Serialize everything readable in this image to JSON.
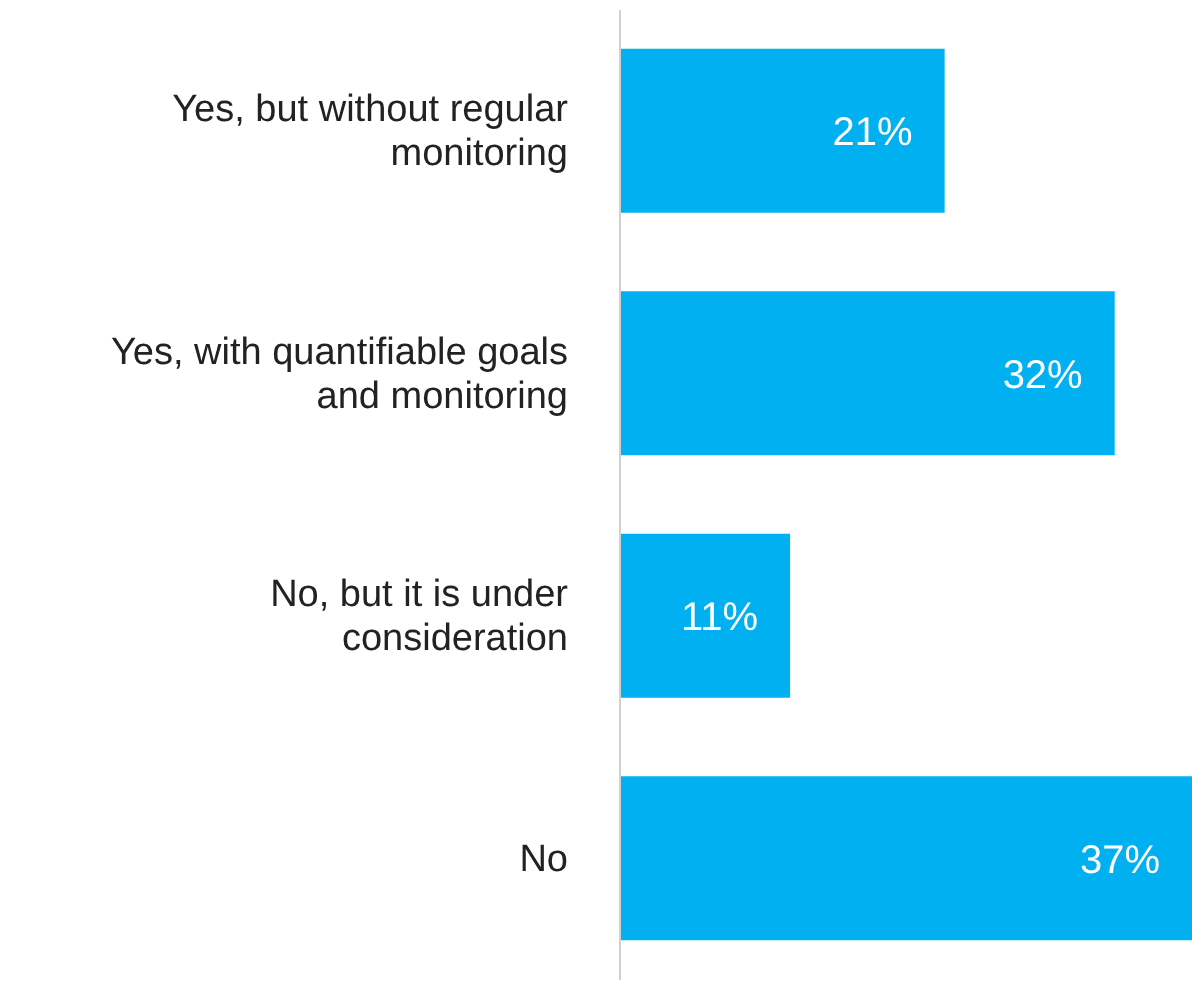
{
  "chart_data": {
    "type": "bar",
    "orientation": "horizontal",
    "categories": [
      "Yes, but without regular monitoring",
      "Yes, with quantifiable goals and monitoring",
      "No, but it is under consideration",
      "No"
    ],
    "values": [
      21,
      32,
      11,
      37
    ],
    "color": "#00b0f0",
    "data_labels": true,
    "value_labels": [
      "21%",
      "32%",
      "11%",
      "37%"
    ],
    "grid": false,
    "legend": false
  }
}
